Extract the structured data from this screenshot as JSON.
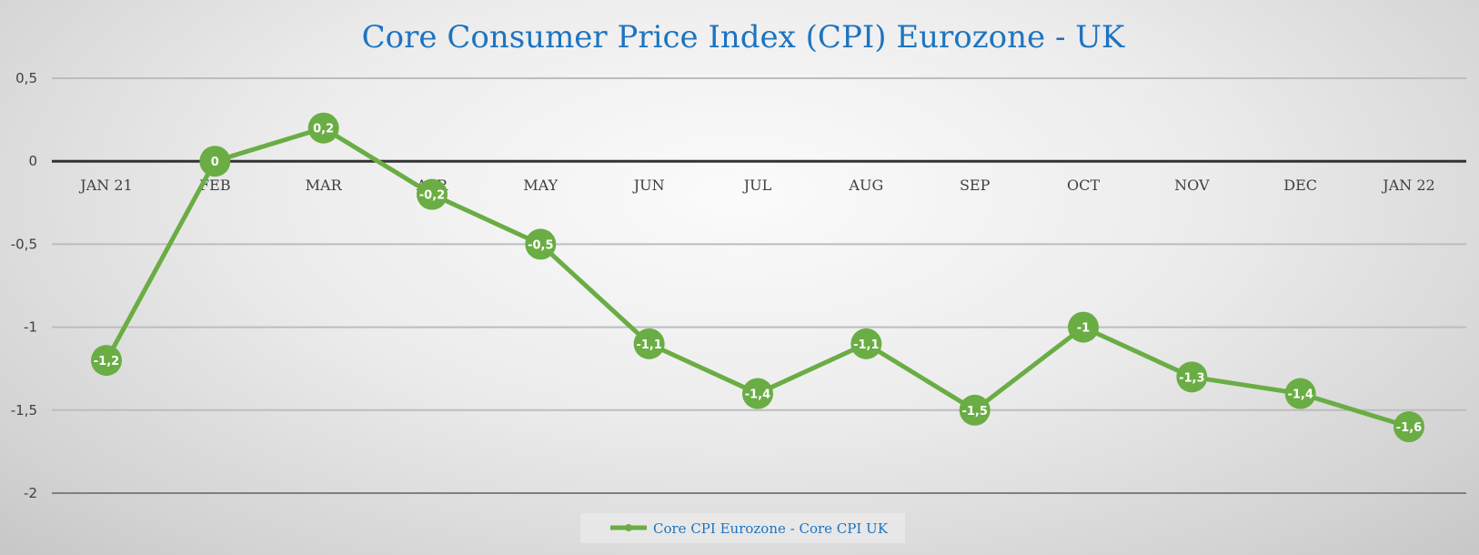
{
  "chart_data": {
    "type": "line",
    "title": "Core Consumer Price Index (CPI) Eurozone - UK",
    "xlabel": "",
    "ylabel": "",
    "categories": [
      "JAN 21",
      "FEB",
      "MAR",
      "APR",
      "MAY",
      "JUN",
      "JUL",
      "AUG",
      "SEP",
      "OCT",
      "NOV",
      "DEC",
      "JAN 22"
    ],
    "series": [
      {
        "name": "Core CPI Eurozone - Core CPI UK",
        "color": "#6aad44",
        "values": [
          -1.2,
          0,
          0.2,
          -0.2,
          -0.5,
          -1.1,
          -1.4,
          -1.1,
          -1.5,
          -1,
          -1.3,
          -1.4,
          -1.6
        ],
        "labels": [
          "-1,2",
          "0",
          "0,2",
          "-0,2",
          "-0,5",
          "-1,1",
          "-1,4",
          "-1,1",
          "-1,5",
          "-1",
          "-1,3",
          "-1,4",
          "-1,6"
        ]
      }
    ],
    "ylim": [
      -2,
      0.5
    ],
    "yticks": [
      0.5,
      0,
      -0.5,
      -1,
      -1.5,
      -2
    ],
    "ytick_labels": [
      "0,5",
      "0",
      "-0,5",
      "-1",
      "-1,5",
      "-2"
    ],
    "grid": true,
    "zero_line_emphasized": true,
    "legend": "bottom",
    "colors": {
      "title": "#1d74c0",
      "series": "#6aad44",
      "axis_text": "#404040",
      "zero_line": "#333333"
    }
  }
}
